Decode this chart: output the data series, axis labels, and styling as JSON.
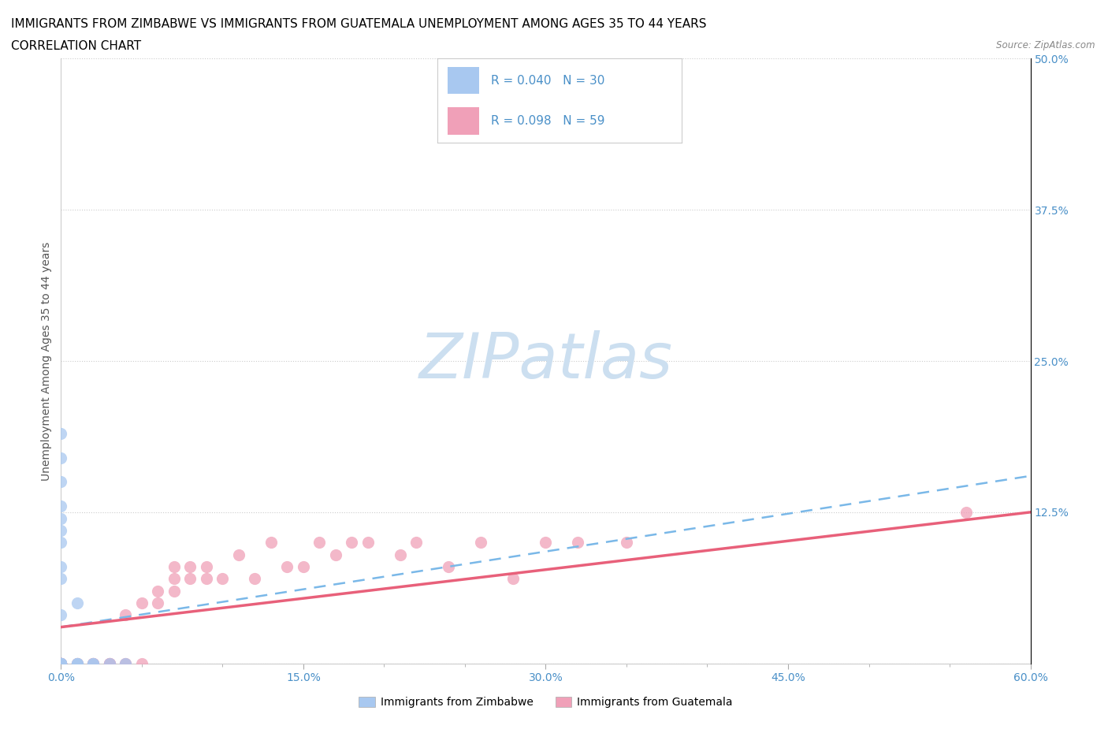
{
  "title_line1": "IMMIGRANTS FROM ZIMBABWE VS IMMIGRANTS FROM GUATEMALA UNEMPLOYMENT AMONG AGES 35 TO 44 YEARS",
  "title_line2": "CORRELATION CHART",
  "source_text": "Source: ZipAtlas.com",
  "ylabel": "Unemployment Among Ages 35 to 44 years",
  "legend_label1": "Immigrants from Zimbabwe",
  "legend_label2": "Immigrants from Guatemala",
  "r1": 0.04,
  "n1": 30,
  "r2": 0.098,
  "n2": 59,
  "color1": "#a8c8f0",
  "color2": "#f0a0b8",
  "trendline1_color": "#7ab8e8",
  "trendline2_color": "#e8607a",
  "watermark_color": "#ccdff0",
  "xlim": [
    0.0,
    0.6
  ],
  "ylim": [
    0.0,
    0.5
  ],
  "xticks_major": [
    0.0,
    0.15,
    0.3,
    0.45,
    0.6
  ],
  "xticks_minor": [
    0.05,
    0.1,
    0.2,
    0.25,
    0.35,
    0.4,
    0.5,
    0.55
  ],
  "yticks": [
    0.0,
    0.125,
    0.25,
    0.375,
    0.5
  ],
  "xticklabels": [
    "0.0%",
    "15.0%",
    "30.0%",
    "45.0%",
    "60.0%"
  ],
  "yticklabels_right": [
    "",
    "12.5%",
    "25.0%",
    "37.5%",
    "50.0%"
  ],
  "axis_label_color": "#4a90c8",
  "grid_color": "#cccccc",
  "title_fontsize": 11,
  "axis_fontsize": 10,
  "tick_fontsize": 10,
  "zimbabwe_x": [
    0.0,
    0.0,
    0.0,
    0.0,
    0.0,
    0.0,
    0.0,
    0.0,
    0.0,
    0.0,
    0.0,
    0.0,
    0.0,
    0.0,
    0.0,
    0.0,
    0.0,
    0.01,
    0.01,
    0.01,
    0.01,
    0.02,
    0.02,
    0.03,
    0.04,
    0.0,
    0.0,
    0.0,
    0.0,
    0.0
  ],
  "zimbabwe_y": [
    0.0,
    0.0,
    0.0,
    0.0,
    0.0,
    0.0,
    0.0,
    0.0,
    0.0,
    0.0,
    0.0,
    0.0,
    0.07,
    0.08,
    0.1,
    0.11,
    0.13,
    0.0,
    0.0,
    0.0,
    0.05,
    0.0,
    0.0,
    0.0,
    0.0,
    0.17,
    0.19,
    0.12,
    0.15,
    0.04
  ],
  "guatemala_x": [
    0.0,
    0.0,
    0.0,
    0.0,
    0.0,
    0.0,
    0.0,
    0.0,
    0.0,
    0.0,
    0.0,
    0.0,
    0.0,
    0.0,
    0.0,
    0.01,
    0.01,
    0.01,
    0.02,
    0.02,
    0.02,
    0.02,
    0.03,
    0.03,
    0.03,
    0.03,
    0.04,
    0.04,
    0.04,
    0.05,
    0.05,
    0.06,
    0.06,
    0.07,
    0.07,
    0.07,
    0.08,
    0.08,
    0.09,
    0.09,
    0.1,
    0.11,
    0.12,
    0.13,
    0.14,
    0.15,
    0.16,
    0.17,
    0.18,
    0.19,
    0.21,
    0.22,
    0.24,
    0.26,
    0.28,
    0.3,
    0.32,
    0.35,
    0.56
  ],
  "guatemala_y": [
    0.0,
    0.0,
    0.0,
    0.0,
    0.0,
    0.0,
    0.0,
    0.0,
    0.0,
    0.0,
    0.0,
    0.0,
    0.0,
    0.0,
    0.0,
    0.0,
    0.0,
    0.0,
    0.0,
    0.0,
    0.0,
    0.0,
    0.0,
    0.0,
    0.0,
    0.0,
    0.0,
    0.0,
    0.04,
    0.0,
    0.05,
    0.05,
    0.06,
    0.06,
    0.07,
    0.08,
    0.07,
    0.08,
    0.08,
    0.07,
    0.07,
    0.09,
    0.07,
    0.1,
    0.08,
    0.08,
    0.1,
    0.09,
    0.1,
    0.1,
    0.09,
    0.1,
    0.08,
    0.1,
    0.07,
    0.1,
    0.1,
    0.1,
    0.125
  ],
  "trendline_zim_y0": 0.03,
  "trendline_zim_y1": 0.155,
  "trendline_guat_y0": 0.03,
  "trendline_guat_y1": 0.125
}
